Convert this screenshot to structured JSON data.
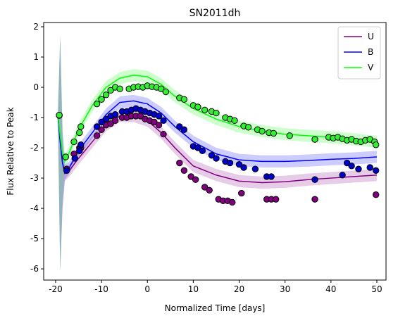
{
  "chart_data": {
    "type": "line",
    "title": "SN2011dh",
    "x_label": "Normalized Time [days]",
    "y_label": "Flux Relative to Peak",
    "xlim": [
      -22.6,
      52.0
    ],
    "ylim": [
      -6.37,
      2.14
    ],
    "xticks": [
      -20,
      -10,
      0,
      10,
      20,
      30,
      40,
      50
    ],
    "yticks": [
      -6,
      -5,
      -4,
      -3,
      -2,
      -1,
      0,
      1,
      2
    ],
    "legend": "upper right",
    "x": [
      -19.5,
      -19,
      -18.5,
      -18,
      -17,
      -15,
      -12,
      -9,
      -6,
      -3,
      0,
      3,
      6,
      10,
      15,
      20,
      25,
      30,
      35,
      40,
      45,
      50
    ],
    "series": [
      {
        "name": "U",
        "color": "#800080",
        "point_color": "#800080",
        "values": [
          -0.95,
          -1.8,
          -2.5,
          -2.85,
          -2.75,
          -2.35,
          -1.8,
          -1.25,
          -0.95,
          -0.95,
          -1.1,
          -1.5,
          -2.0,
          -2.6,
          -2.9,
          -3.1,
          -3.15,
          -3.12,
          -3.05,
          -3.0,
          -2.95,
          -2.9
        ],
        "upper": [
          -0.85,
          1.7,
          -1.5,
          -2.6,
          -2.55,
          -2.15,
          -1.6,
          -1.05,
          -0.75,
          -0.75,
          -0.9,
          -1.3,
          -1.8,
          -2.4,
          -2.7,
          -2.9,
          -2.95,
          -2.92,
          -2.85,
          -2.8,
          -2.75,
          -2.7
        ],
        "lower": [
          -1.05,
          -6.1,
          -4.0,
          -3.1,
          -2.95,
          -2.55,
          -2.0,
          -1.45,
          -1.15,
          -1.15,
          -1.3,
          -1.7,
          -2.2,
          -2.8,
          -3.1,
          -3.3,
          -3.35,
          -3.32,
          -3.25,
          -3.2,
          -3.15,
          -3.1
        ],
        "points_x": [
          -17.6,
          -16,
          -14.8,
          -14.5,
          -11,
          -10,
          -9,
          -8,
          -7,
          -5.5,
          -4.5,
          -3.5,
          -2.5,
          -1.5,
          -0.5,
          0.5,
          1.5,
          2.5,
          3.5,
          7,
          8,
          9.5,
          10.5,
          12.5,
          13.5,
          15.5,
          16.5,
          17.5,
          18.5,
          20.5,
          26,
          27,
          28,
          36.5,
          49.8
        ],
        "points_y": [
          -2.7,
          -2.2,
          -2.0,
          -2.0,
          -1.6,
          -1.4,
          -1.25,
          -1.2,
          -1.1,
          -1.0,
          -1.0,
          -0.95,
          -0.95,
          -0.95,
          -1.05,
          -1.1,
          -1.15,
          -1.25,
          -1.55,
          -2.5,
          -2.75,
          -2.95,
          -3.05,
          -3.3,
          -3.4,
          -3.7,
          -3.75,
          -3.75,
          -3.8,
          -3.5,
          -3.7,
          -3.7,
          -3.7,
          -3.7,
          -3.55
        ]
      },
      {
        "name": "B",
        "color": "#0000ff",
        "point_color": "#0000cd",
        "values": [
          -0.95,
          -1.8,
          -2.5,
          -2.8,
          -2.65,
          -2.1,
          -1.5,
          -0.9,
          -0.5,
          -0.45,
          -0.55,
          -0.85,
          -1.3,
          -1.8,
          -2.2,
          -2.4,
          -2.45,
          -2.45,
          -2.42,
          -2.38,
          -2.35,
          -2.3
        ],
        "upper": [
          -0.85,
          1.7,
          -1.5,
          -2.55,
          -2.45,
          -1.9,
          -1.3,
          -0.7,
          -0.3,
          -0.25,
          -0.35,
          -0.65,
          -1.1,
          -1.6,
          -2.0,
          -2.2,
          -2.25,
          -2.25,
          -2.22,
          -2.18,
          -2.15,
          -2.1
        ],
        "lower": [
          -1.05,
          -6.1,
          -4.0,
          -3.05,
          -2.85,
          -2.3,
          -1.7,
          -1.1,
          -0.7,
          -0.65,
          -0.75,
          -1.05,
          -1.5,
          -2.0,
          -2.4,
          -2.6,
          -2.65,
          -2.65,
          -2.62,
          -2.58,
          -2.55,
          -2.5
        ],
        "points_x": [
          -19.2,
          -17.6,
          -15.8,
          -14.8,
          -14.5,
          -11,
          -10,
          -9,
          -8,
          -7,
          -5.5,
          -4.5,
          -3.5,
          -2.5,
          -1.5,
          -0.5,
          0.5,
          1.5,
          2.5,
          3.5,
          7,
          8,
          10,
          11,
          12,
          14,
          15,
          17,
          18,
          20,
          21,
          23.5,
          26,
          27,
          36.5,
          42.5,
          43.5,
          44.5,
          46,
          48.5,
          49.8
        ],
        "points_y": [
          -0.93,
          -2.75,
          -2.35,
          -2.1,
          -1.9,
          -1.3,
          -1.15,
          -1.05,
          -0.95,
          -0.9,
          -0.8,
          -0.8,
          -0.75,
          -0.7,
          -0.75,
          -0.8,
          -0.85,
          -0.9,
          -0.95,
          -1.1,
          -1.3,
          -1.4,
          -1.95,
          -2.0,
          -2.1,
          -2.25,
          -2.35,
          -2.45,
          -2.5,
          -2.55,
          -2.65,
          -2.7,
          -2.95,
          -2.95,
          -3.05,
          -2.9,
          -2.5,
          -2.6,
          -2.7,
          -2.65,
          -2.75
        ]
      },
      {
        "name": "V",
        "color": "#00ff00",
        "point_color": "#33ee33",
        "values": [
          -0.9,
          -1.6,
          -2.2,
          -2.45,
          -2.15,
          -1.4,
          -0.6,
          0,
          0.3,
          0.4,
          0.35,
          0.1,
          -0.3,
          -0.7,
          -1.05,
          -1.3,
          -1.45,
          -1.55,
          -1.6,
          -1.65,
          -1.72,
          -1.8
        ],
        "upper": [
          -0.8,
          1.7,
          -1.2,
          -2.2,
          -1.95,
          -1.2,
          -0.4,
          0.2,
          0.5,
          0.6,
          0.55,
          0.3,
          -0.1,
          -0.5,
          -0.85,
          -1.1,
          -1.25,
          -1.35,
          -1.4,
          -1.45,
          -1.52,
          -1.6
        ],
        "lower": [
          -1.0,
          -6.1,
          -3.7,
          -2.7,
          -2.35,
          -1.6,
          -0.8,
          -0.2,
          0.1,
          0.2,
          0.15,
          -0.1,
          -0.5,
          -0.9,
          -1.25,
          -1.5,
          -1.65,
          -1.75,
          -1.8,
          -1.85,
          -1.92,
          -2.0
        ],
        "points_x": [
          -19.2,
          -17.8,
          -16,
          -14.8,
          -14.5,
          -11,
          -10,
          -9,
          -8,
          -7,
          -6,
          -4,
          -3,
          -2,
          -1,
          0,
          1,
          2,
          3,
          4,
          7,
          8,
          10,
          11,
          12.5,
          14,
          15,
          17,
          18,
          19,
          21,
          22,
          24,
          25,
          26.5,
          27.5,
          31,
          36.5,
          39.5,
          40.5,
          41.5,
          42.5,
          43.5,
          44.5,
          45.5,
          46.5,
          47.5,
          48.5,
          49.5,
          49.8
        ],
        "points_y": [
          -0.92,
          -2.3,
          -1.8,
          -1.5,
          -1.3,
          -0.55,
          -0.4,
          -0.25,
          -0.1,
          0,
          -0.05,
          -0.05,
          0,
          0.02,
          0,
          0.05,
          0.02,
          0.0,
          -0.05,
          -0.15,
          -0.35,
          -0.4,
          -0.6,
          -0.65,
          -0.75,
          -0.8,
          -0.85,
          -1.0,
          -1.05,
          -1.1,
          -1.28,
          -1.32,
          -1.4,
          -1.45,
          -1.5,
          -1.52,
          -1.6,
          -1.72,
          -1.65,
          -1.68,
          -1.65,
          -1.7,
          -1.75,
          -1.72,
          -1.78,
          -1.8,
          -1.75,
          -1.72,
          -1.8,
          -1.9
        ]
      }
    ]
  }
}
